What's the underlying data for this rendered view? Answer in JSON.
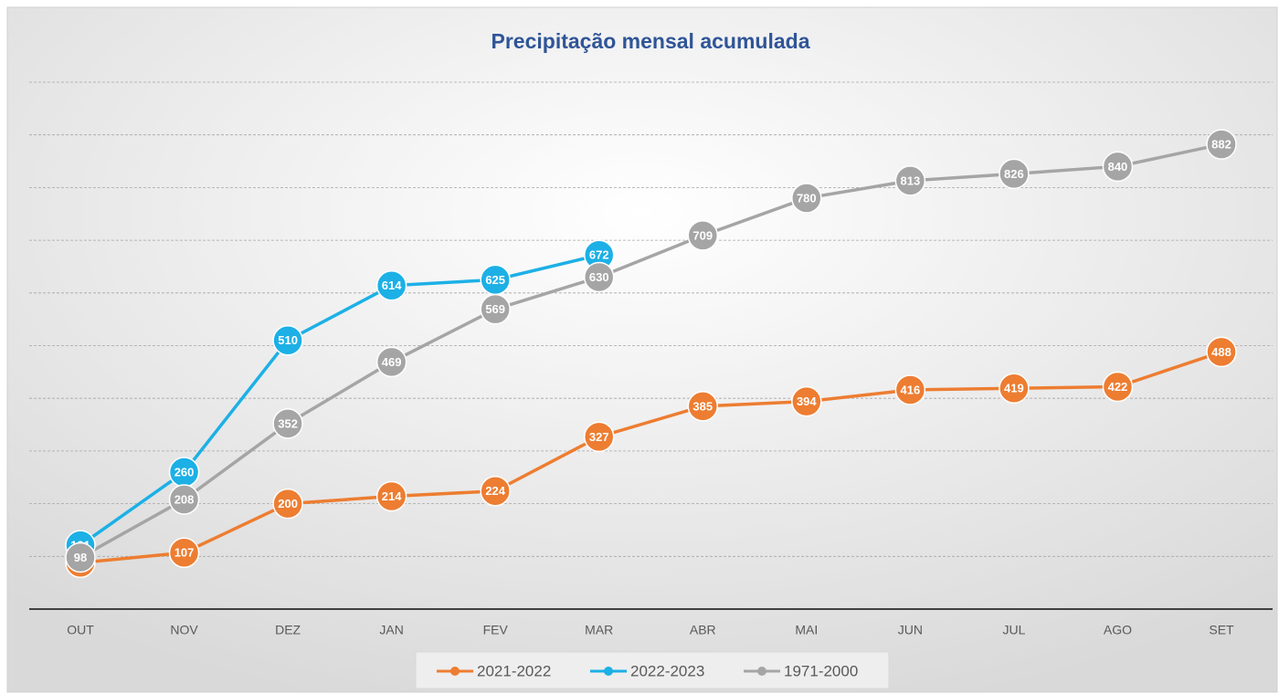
{
  "chart_data": {
    "type": "line",
    "title": "Precipitação  mensal acumulada",
    "categories": [
      "OUT",
      "NOV",
      "DEZ",
      "JAN",
      "FEV",
      "MAR",
      "ABR",
      "MAI",
      "JUN",
      "JUL",
      "AGO",
      "SET"
    ],
    "series": [
      {
        "name": "2021-2022",
        "color": "#ed7d31",
        "values": [
          88,
          107,
          200,
          214,
          224,
          327,
          385,
          394,
          416,
          419,
          422,
          488
        ]
      },
      {
        "name": "2022-2023",
        "color": "#1cb0e6",
        "values": [
          121,
          260,
          510,
          614,
          625,
          672,
          null,
          null,
          null,
          null,
          null,
          null
        ]
      },
      {
        "name": "1971-2000",
        "color": "#a5a5a5",
        "values": [
          98,
          208,
          352,
          469,
          569,
          630,
          709,
          780,
          813,
          826,
          840,
          882
        ]
      }
    ],
    "ylim": [
      0,
      1000
    ],
    "yticks": [
      0,
      100,
      200,
      300,
      400,
      500,
      600,
      700,
      800,
      900,
      1000
    ],
    "grid": true,
    "legend": "bottom"
  }
}
